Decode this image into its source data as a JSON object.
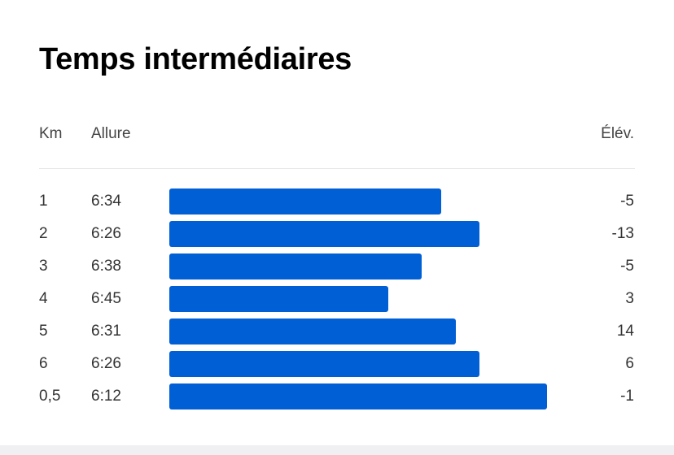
{
  "header": {
    "title": "Temps intermédiaires"
  },
  "table": {
    "columns": [
      "Km",
      "Allure",
      "Élév."
    ],
    "rows": [
      {
        "km": "1",
        "pace": {
          "value": 394,
          "label": "6:34"
        },
        "elev": -5
      },
      {
        "km": "2",
        "pace": {
          "value": 386,
          "label": "6:26"
        },
        "elev": -13
      },
      {
        "km": "3",
        "pace": {
          "value": 398,
          "label": "6:38"
        },
        "elev": -5
      },
      {
        "km": "4",
        "pace": {
          "value": 405,
          "label": "6:45"
        },
        "elev": 3
      },
      {
        "km": "5",
        "pace": {
          "value": 391,
          "label": "6:31"
        },
        "elev": 14
      },
      {
        "km": "6",
        "pace": {
          "value": 386,
          "label": "6:26"
        },
        "elev": 6
      },
      {
        "km": "0,5",
        "pace": {
          "value": 372,
          "label": "6:12"
        },
        "elev": -1
      }
    ]
  }
}
